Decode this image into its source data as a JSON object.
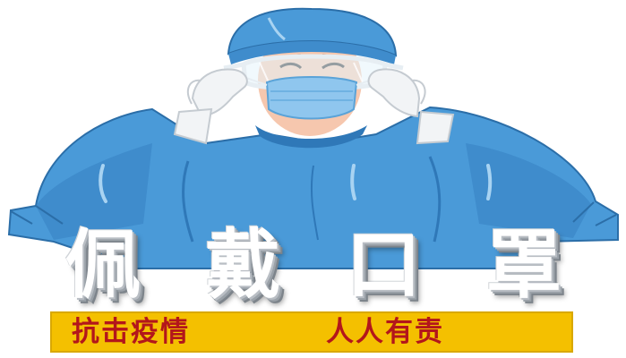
{
  "poster": {
    "headline": [
      "佩",
      "戴",
      "口",
      "罩"
    ],
    "slogan_left": "抗击疫情",
    "slogan_right": "人人有责"
  },
  "colors": {
    "gown": "#4a9ad8",
    "gown_shadow": "#2f78b8",
    "cap": "#4a9ad8",
    "mask": "#8fc6ee",
    "skin": "#f6c7ae",
    "banner": "#f4c000",
    "slogan_text": "#b3161b"
  },
  "illustration": {
    "subject": "medical-worker-in-protective-gown"
  }
}
